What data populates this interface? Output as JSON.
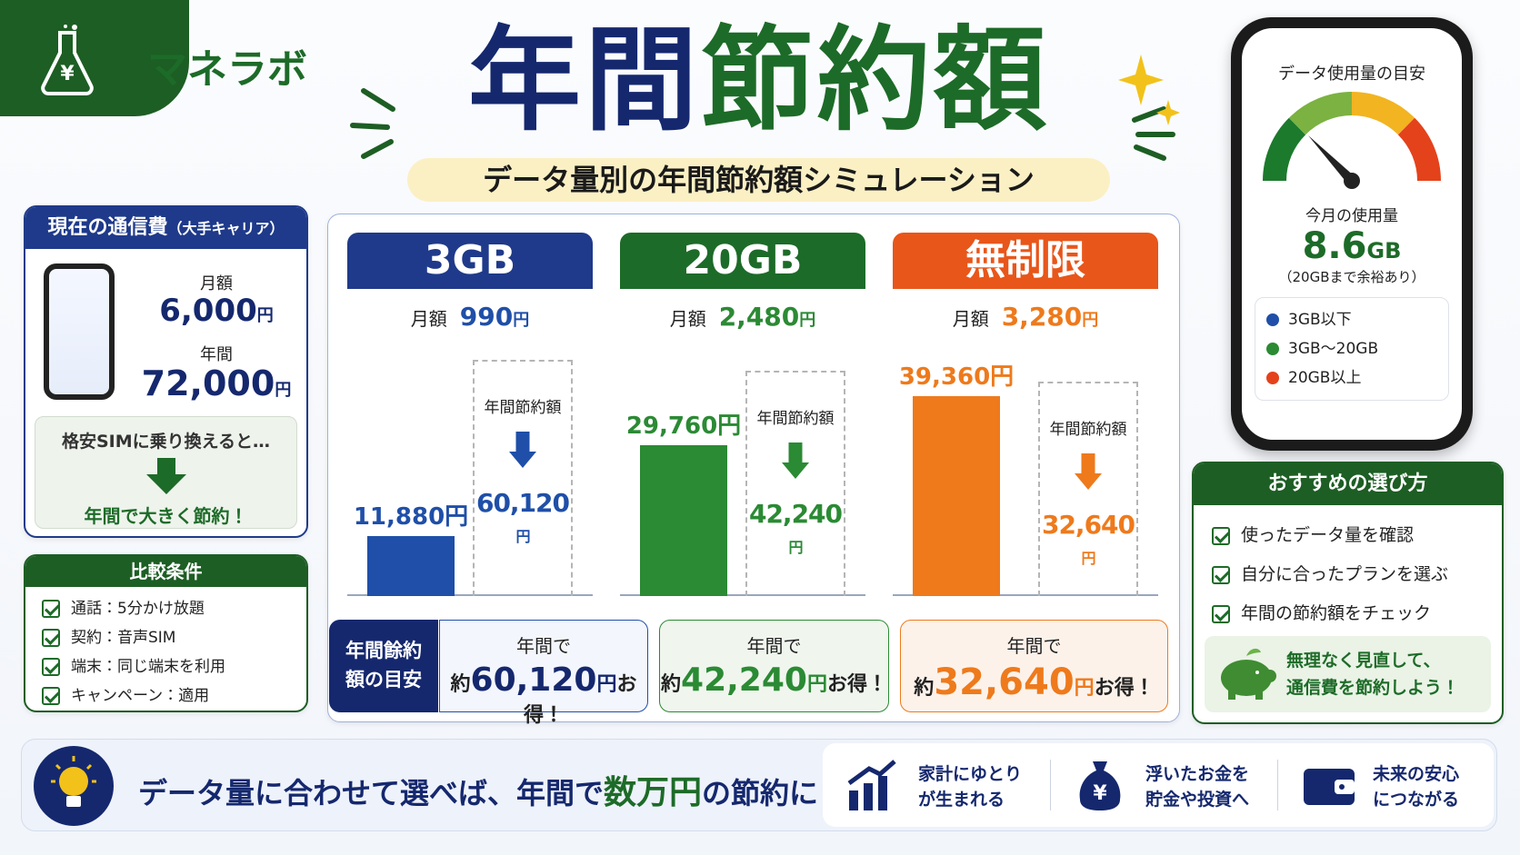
{
  "brand": "マネラボ",
  "title": {
    "part1": "年間",
    "part2": "節約額"
  },
  "subtitle": "データ量別の年間節約額シミュレーション",
  "unit": "円",
  "current": {
    "heading": "現在の通信費",
    "heading_note": "（大手キャリア）",
    "monthly_label": "月額",
    "monthly": "6,000",
    "annual_label": "年間",
    "annual": "72,000",
    "switch_text": "格安SIMに乗り換えると…",
    "switch_result": "年間で大きく節約！"
  },
  "conditions": {
    "heading": "比較条件",
    "items": [
      "通話：5分かけ放題",
      "契約：音声SIM",
      "端末：同じ端末を利用",
      "キャンペーン：適用"
    ]
  },
  "chart_data": {
    "type": "bar",
    "categories": [
      "3GB",
      "20GB",
      "無制限"
    ],
    "values": [
      11880,
      29760,
      39360
    ],
    "value_labels": [
      "11,880円",
      "29,760円",
      "39,360円"
    ],
    "colors": [
      "#1f4fa8",
      "#2b8a34",
      "#ee7a1c"
    ]
  },
  "plans": {
    "monthly_label": "月額",
    "monthly": [
      "990",
      "2,480",
      "3,280"
    ],
    "savings_label": "年間節約額",
    "savings": [
      "60,120",
      "42,240",
      "32,640"
    ],
    "summary_heading": "年間餘約額の目安",
    "summary_prefix": "年間で",
    "summary_approx": "約",
    "summary_suffix": "お得！"
  },
  "phone": {
    "title": "データ使用量の目安",
    "usage_label": "今月の使用量",
    "usage": "8.6",
    "usage_unit": "GB",
    "usage_note": "（20GBまで余裕あり）",
    "legend": [
      "3GB以下",
      "3GB〜20GB",
      "20GB以上"
    ]
  },
  "recommend": {
    "heading": "おすすめの選び方",
    "items": [
      "使ったデータ量を確認",
      "自分に合ったプランを選ぶ",
      "年間の節約額をチェック"
    ],
    "message": [
      "無理なく見直して、",
      "通信費を節約しよう！"
    ]
  },
  "footer": {
    "message": [
      "データ量に合わせて選べば、年間で",
      "数万円",
      "の節約に！"
    ],
    "benefits": [
      [
        "家計にゆとり",
        "が生まれる"
      ],
      [
        "浮いたお金を",
        "貯金や投資へ"
      ],
      [
        "未来の安心",
        "につながる"
      ]
    ]
  }
}
